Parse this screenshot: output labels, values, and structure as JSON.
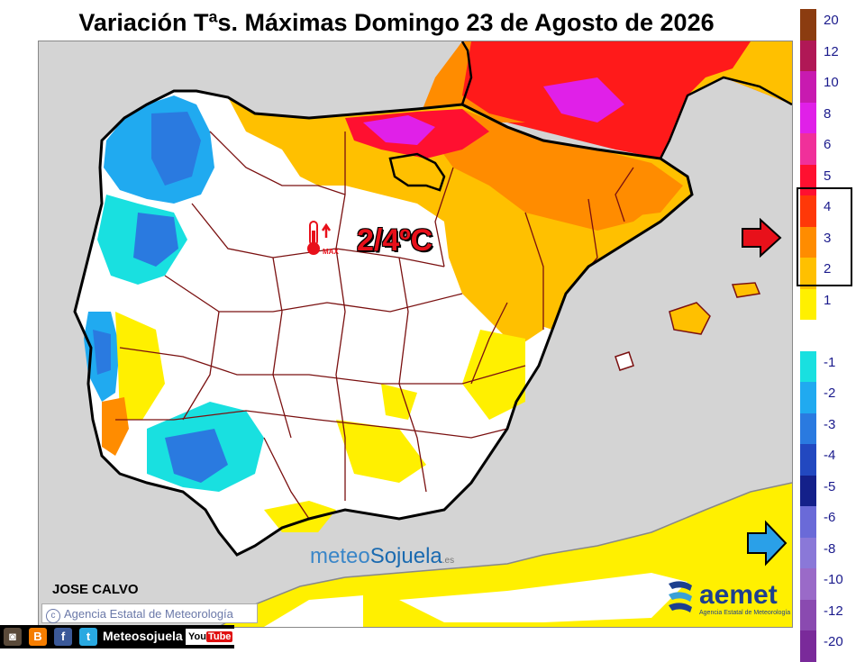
{
  "title": "Variación Tªs. Máximas Domingo 23 de Agosto de 2026",
  "annotation": "2/4ºC",
  "thermometer_label": "MAX",
  "author": "JOSE CALVO",
  "agency_credit": "Agencia Estatal de Meteorología",
  "copyright_symbol": "c",
  "watermark": {
    "part1": "meteo",
    "part2": "Sojuela",
    "suffix": ".es"
  },
  "aemet_logo": {
    "name": "aemet",
    "subtitle": "Agencia Estatal de Meteorología"
  },
  "social_bar": {
    "label": "Meteosojuela",
    "youtube_you": "You",
    "youtube_tube": "Tube",
    "icons": [
      "instagram-icon",
      "blogger-icon",
      "facebook-icon",
      "twitter-icon",
      "youtube-icon"
    ]
  },
  "legend": {
    "entries": [
      {
        "label": "20",
        "color": "#8b3c10"
      },
      {
        "label": "12",
        "color": "#b01856"
      },
      {
        "label": "10",
        "color": "#c81ab0"
      },
      {
        "label": "8",
        "color": "#e020e8"
      },
      {
        "label": "6",
        "color": "#f0309a"
      },
      {
        "label": "5",
        "color": "#ff1030"
      },
      {
        "label": "4",
        "color": "#ff3808"
      },
      {
        "label": "3",
        "color": "#ff8c00"
      },
      {
        "label": "2",
        "color": "#ffc000"
      },
      {
        "label": "1",
        "color": "#fff000"
      },
      {
        "label": "",
        "color": "#ffffff"
      },
      {
        "label": "-1",
        "color": "#19e0e0"
      },
      {
        "label": "-2",
        "color": "#20aaf0"
      },
      {
        "label": "-3",
        "color": "#2a7ae0"
      },
      {
        "label": "-4",
        "color": "#2248c0"
      },
      {
        "label": "-5",
        "color": "#14208a"
      },
      {
        "label": "-6",
        "color": "#6a6ad8"
      },
      {
        "label": "-8",
        "color": "#8a78d8"
      },
      {
        "label": "-10",
        "color": "#9a6ac8"
      },
      {
        "label": "-12",
        "color": "#8a4ab0"
      },
      {
        "label": "-20",
        "color": "#7a2a9a"
      }
    ]
  },
  "highlighted_range": [
    "2",
    "4"
  ],
  "colors": {
    "sea": "#d4d4d4",
    "border": "#7a1010",
    "coast": "#000000",
    "warm_arrow": "#e8101a",
    "cold_arrow": "#2aa0e8"
  }
}
